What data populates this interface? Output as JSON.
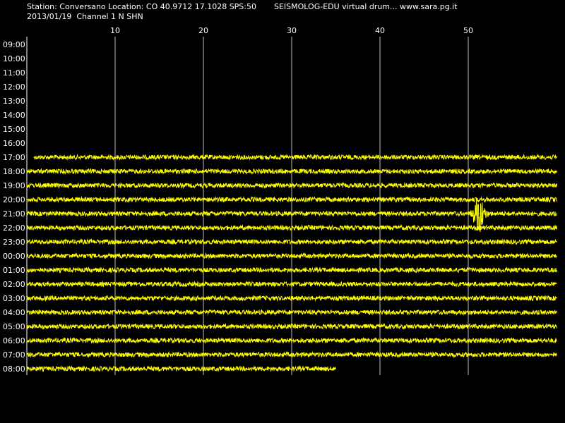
{
  "chart_data": {
    "type": "helicorder",
    "header_left": "Station: Conversano Location: CO 40.9712 17.1028 SPS:50",
    "header_right": "SEISMOLOG-EDU virtual drum... www.sara.pg.it",
    "subheader": "2013/01/19  Channel 1 N SHN",
    "rows": [
      "09:00",
      "10:00",
      "11:00",
      "12:00",
      "13:00",
      "14:00",
      "15:00",
      "16:00",
      "17:00",
      "18:00",
      "19:00",
      "20:00",
      "21:00",
      "22:00",
      "23:00",
      "00:00",
      "01:00",
      "02:00",
      "03:00",
      "04:00",
      "05:00",
      "06:00",
      "07:00",
      "08:00"
    ],
    "x_start": [
      null,
      null,
      null,
      null,
      null,
      null,
      null,
      null,
      0.8,
      0,
      0,
      0,
      0,
      0,
      0,
      0,
      0,
      0,
      0,
      0,
      0,
      0,
      0,
      0
    ],
    "x_end": [
      null,
      null,
      null,
      null,
      null,
      null,
      null,
      null,
      60,
      60,
      60,
      60,
      60,
      60,
      60,
      60,
      60,
      60,
      60,
      60,
      60,
      60,
      60,
      35
    ],
    "event": [
      null,
      null,
      null,
      null,
      null,
      null,
      null,
      null,
      null,
      null,
      null,
      null,
      [
        50.2,
        53.5
      ],
      null,
      null,
      null,
      null,
      null,
      null,
      null,
      null,
      null,
      null,
      null
    ],
    "xlim": [
      0,
      60
    ],
    "xticks": [
      10,
      20,
      30,
      40,
      50
    ],
    "grid": true,
    "color": "#ffff00"
  }
}
